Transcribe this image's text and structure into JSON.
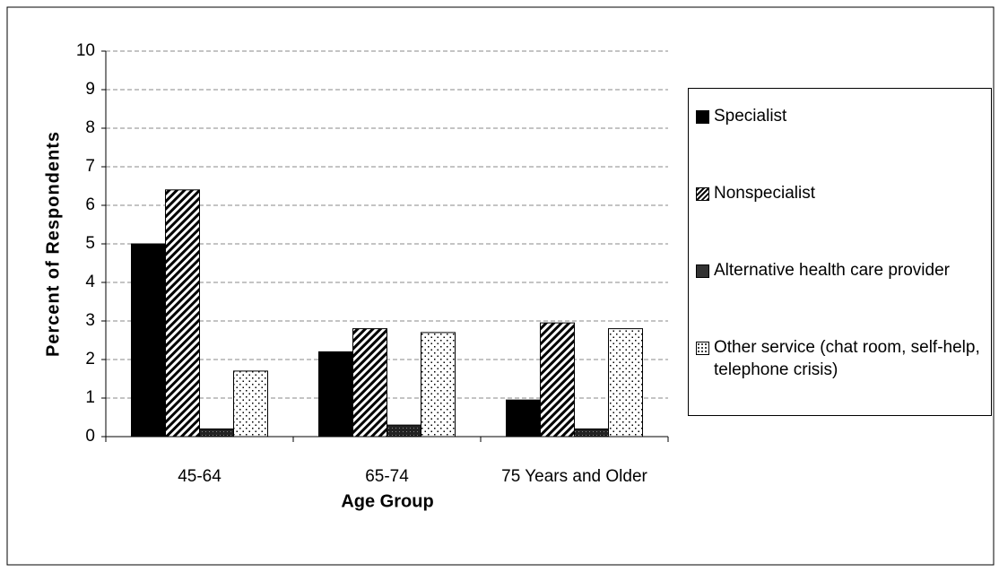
{
  "chart_data": {
    "type": "bar",
    "categories": [
      "45-64",
      "65-74",
      "75 Years and Older"
    ],
    "series": [
      {
        "name": "Specialist",
        "color": "#000000",
        "pattern": "solid",
        "values": [
          5.0,
          2.2,
          0.95
        ]
      },
      {
        "name": "Nonspecialist",
        "color": "#000000",
        "pattern": "hatch",
        "values": [
          6.4,
          2.8,
          2.95
        ]
      },
      {
        "name": "Alternative health care provider",
        "color": "#333333",
        "pattern": "dark-dots",
        "values": [
          0.2,
          0.3,
          0.2
        ]
      },
      {
        "name": "Other service (chat room, self-help, telephone crisis)",
        "color": "#000000",
        "pattern": "dots",
        "values": [
          1.7,
          2.7,
          2.8
        ]
      }
    ],
    "xlabel": "Age Group",
    "ylabel": "Percent of Respondents",
    "ylim": [
      0,
      10
    ],
    "yticks": [
      0,
      1,
      2,
      3,
      4,
      5,
      6,
      7,
      8,
      9,
      10
    ],
    "grid": true,
    "legend": "right"
  }
}
